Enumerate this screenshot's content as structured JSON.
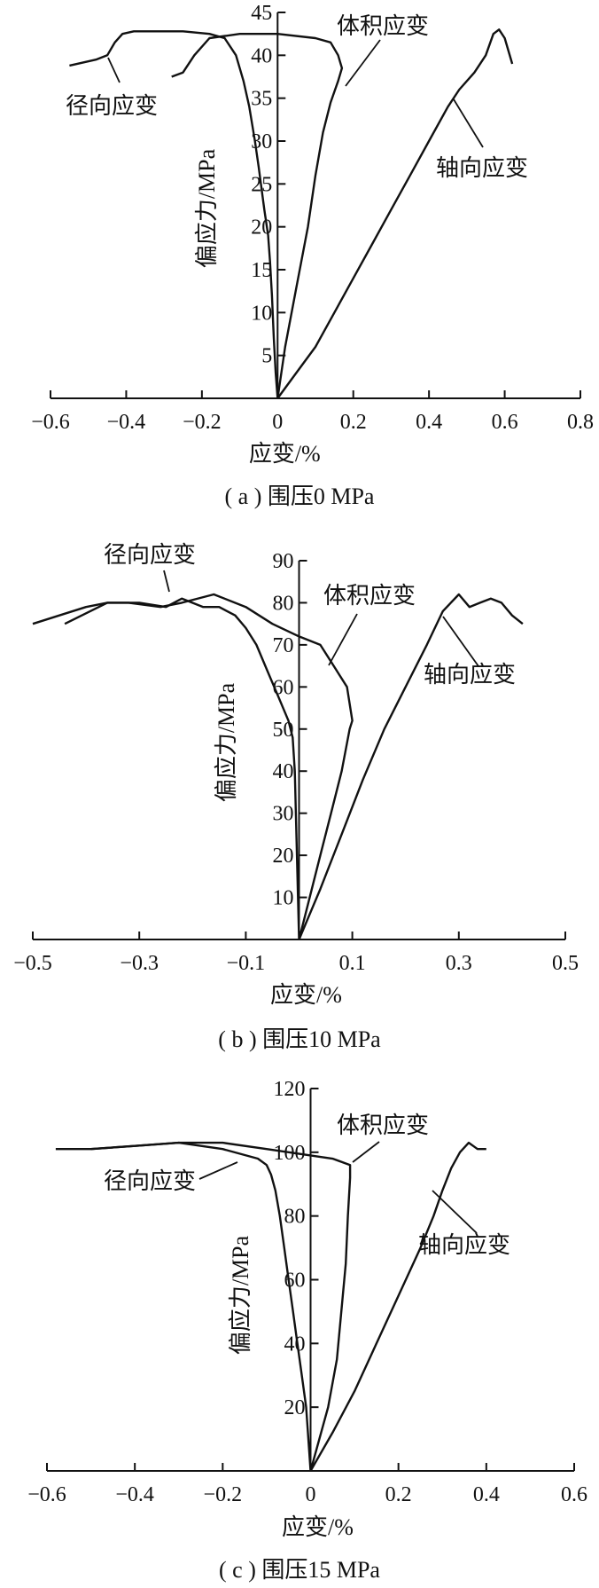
{
  "chart_data": [
    {
      "type": "line",
      "caption": "( a ) 围压0 MPa",
      "xlabel": "应变/%",
      "ylabel": "偏应力/MPa",
      "xlim": [
        -0.6,
        0.8
      ],
      "ylim": [
        0,
        45
      ],
      "x_ticks": [
        "−0.6",
        "−0.4",
        "−0.2",
        "0",
        "0.2",
        "0.4",
        "0.6",
        "0.8"
      ],
      "y_ticks": [
        "5",
        "10",
        "15",
        "20",
        "25",
        "30",
        "35",
        "40",
        "45"
      ],
      "series": [
        {
          "name": "径向应变",
          "points": [
            [
              0,
              0
            ],
            [
              -0.005,
              3
            ],
            [
              -0.01,
              7
            ],
            [
              -0.015,
              12
            ],
            [
              -0.02,
              16
            ],
            [
              -0.025,
              19
            ],
            [
              -0.035,
              22
            ],
            [
              -0.05,
              27
            ],
            [
              -0.06,
              30
            ],
            [
              -0.075,
              34
            ],
            [
              -0.09,
              37
            ],
            [
              -0.11,
              40
            ],
            [
              -0.14,
              42
            ],
            [
              -0.18,
              42.5
            ],
            [
              -0.25,
              42.8
            ],
            [
              -0.32,
              42.8
            ],
            [
              -0.38,
              42.8
            ],
            [
              -0.41,
              42.5
            ],
            [
              -0.43,
              41.5
            ],
            [
              -0.45,
              40
            ],
            [
              -0.48,
              39.5
            ],
            [
              -0.55,
              38.8
            ]
          ]
        },
        {
          "name": "体积应变",
          "points": [
            [
              0,
              0
            ],
            [
              0.02,
              6
            ],
            [
              0.05,
              13
            ],
            [
              0.08,
              20
            ],
            [
              0.1,
              26
            ],
            [
              0.12,
              31
            ],
            [
              0.14,
              34.5
            ],
            [
              0.16,
              37
            ],
            [
              0.17,
              38.5
            ],
            [
              0.16,
              40
            ],
            [
              0.14,
              41.5
            ],
            [
              0.1,
              42
            ],
            [
              0.0,
              42.5
            ],
            [
              -0.1,
              42.5
            ],
            [
              -0.18,
              42
            ],
            [
              -0.22,
              40
            ],
            [
              -0.25,
              38
            ],
            [
              -0.28,
              37.5
            ]
          ]
        },
        {
          "name": "轴向应变",
          "points": [
            [
              0,
              0
            ],
            [
              0.05,
              3
            ],
            [
              0.1,
              6
            ],
            [
              0.15,
              10
            ],
            [
              0.2,
              14
            ],
            [
              0.25,
              18
            ],
            [
              0.3,
              22
            ],
            [
              0.35,
              26
            ],
            [
              0.4,
              30
            ],
            [
              0.45,
              34
            ],
            [
              0.48,
              36
            ],
            [
              0.52,
              38
            ],
            [
              0.55,
              40
            ],
            [
              0.57,
              42.5
            ],
            [
              0.585,
              43
            ],
            [
              0.6,
              42
            ],
            [
              0.62,
              39
            ]
          ]
        }
      ],
      "annotations": [
        "径向应变",
        "体积应变",
        "轴向应变"
      ]
    },
    {
      "type": "line",
      "caption": "( b ) 围压10 MPa",
      "xlabel": "应变/%",
      "ylabel": "偏应力/MPa",
      "xlim": [
        -0.5,
        0.5
      ],
      "ylim": [
        0,
        90
      ],
      "x_ticks": [
        "−0.5",
        "−0.3",
        "−0.1",
        "0.1",
        "0.3",
        "0.5"
      ],
      "y_ticks": [
        "10",
        "20",
        "30",
        "40",
        "50",
        "60",
        "70",
        "80",
        "90"
      ],
      "series": [
        {
          "name": "径向应变",
          "points": [
            [
              0,
              0
            ],
            [
              -0.002,
              10
            ],
            [
              -0.004,
              20
            ],
            [
              -0.006,
              30
            ],
            [
              -0.008,
              40
            ],
            [
              -0.012,
              48
            ],
            [
              -0.02,
              52
            ],
            [
              -0.04,
              58
            ],
            [
              -0.06,
              64
            ],
            [
              -0.08,
              70
            ],
            [
              -0.1,
              74
            ],
            [
              -0.12,
              77
            ],
            [
              -0.15,
              79
            ],
            [
              -0.18,
              79
            ],
            [
              -0.22,
              81
            ],
            [
              -0.25,
              79
            ],
            [
              -0.3,
              80
            ],
            [
              -0.36,
              80
            ],
            [
              -0.4,
              79
            ],
            [
              -0.45,
              77
            ],
            [
              -0.5,
              75
            ]
          ]
        },
        {
          "name": "体积应变",
          "points": [
            [
              0,
              0
            ],
            [
              0.02,
              10
            ],
            [
              0.04,
              20
            ],
            [
              0.06,
              30
            ],
            [
              0.08,
              40
            ],
            [
              0.095,
              50
            ],
            [
              0.1,
              52
            ],
            [
              0.09,
              60
            ],
            [
              0.06,
              66
            ],
            [
              0.04,
              70
            ],
            [
              0.0,
              72
            ],
            [
              -0.05,
              75
            ],
            [
              -0.1,
              79
            ],
            [
              -0.16,
              82
            ],
            [
              -0.22,
              80
            ],
            [
              -0.26,
              79
            ],
            [
              -0.32,
              80
            ],
            [
              -0.36,
              80
            ],
            [
              -0.44,
              75
            ]
          ]
        },
        {
          "name": "轴向应变",
          "points": [
            [
              0,
              0
            ],
            [
              0.04,
              12
            ],
            [
              0.08,
              25
            ],
            [
              0.12,
              38
            ],
            [
              0.16,
              50
            ],
            [
              0.2,
              60
            ],
            [
              0.24,
              70
            ],
            [
              0.27,
              78
            ],
            [
              0.3,
              82
            ],
            [
              0.32,
              79
            ],
            [
              0.34,
              80
            ],
            [
              0.36,
              81
            ],
            [
              0.38,
              80
            ],
            [
              0.4,
              77
            ],
            [
              0.42,
              75
            ]
          ]
        }
      ],
      "annotations": [
        "径向应变",
        "体积应变",
        "轴向应变"
      ]
    },
    {
      "type": "line",
      "caption": "( c ) 围压15 MPa",
      "xlabel": "应变/%",
      "ylabel": "偏应力/MPa",
      "xlim": [
        -0.6,
        0.6
      ],
      "ylim": [
        0,
        120
      ],
      "x_ticks": [
        "−0.6",
        "−0.4",
        "−0.2",
        "0",
        "0.2",
        "0.4",
        "0.6"
      ],
      "y_ticks": [
        "20",
        "40",
        "60",
        "80",
        "100",
        "120"
      ],
      "series": [
        {
          "name": "径向应变",
          "points": [
            [
              0,
              0
            ],
            [
              -0.005,
              10
            ],
            [
              -0.01,
              20
            ],
            [
              -0.02,
              30
            ],
            [
              -0.03,
              40
            ],
            [
              -0.04,
              50
            ],
            [
              -0.05,
              60
            ],
            [
              -0.06,
              70
            ],
            [
              -0.07,
              80
            ],
            [
              -0.08,
              88
            ],
            [
              -0.09,
              93
            ],
            [
              -0.1,
              96
            ],
            [
              -0.12,
              98
            ],
            [
              -0.2,
              101
            ],
            [
              -0.3,
              103
            ],
            [
              -0.4,
              102
            ],
            [
              -0.5,
              101
            ],
            [
              -0.58,
              101
            ]
          ]
        },
        {
          "name": "体积应变",
          "points": [
            [
              0,
              0
            ],
            [
              0.02,
              10
            ],
            [
              0.04,
              20
            ],
            [
              0.06,
              35
            ],
            [
              0.07,
              50
            ],
            [
              0.08,
              65
            ],
            [
              0.085,
              80
            ],
            [
              0.09,
              92
            ],
            [
              0.09,
              96
            ],
            [
              0.05,
              98
            ],
            [
              0.0,
              99
            ],
            [
              -0.1,
              101
            ],
            [
              -0.2,
              103
            ],
            [
              -0.3,
              103
            ],
            [
              -0.4,
              102
            ],
            [
              -0.5,
              101
            ]
          ]
        },
        {
          "name": "轴向应变",
          "points": [
            [
              0,
              0
            ],
            [
              0.05,
              12
            ],
            [
              0.1,
              25
            ],
            [
              0.15,
              40
            ],
            [
              0.2,
              55
            ],
            [
              0.25,
              70
            ],
            [
              0.28,
              80
            ],
            [
              0.3,
              88
            ],
            [
              0.32,
              95
            ],
            [
              0.34,
              100
            ],
            [
              0.36,
              103
            ],
            [
              0.37,
              102
            ],
            [
              0.38,
              101
            ],
            [
              0.4,
              101
            ]
          ]
        }
      ],
      "annotations": [
        "径向应变",
        "体积应变",
        "轴向应变"
      ]
    }
  ]
}
